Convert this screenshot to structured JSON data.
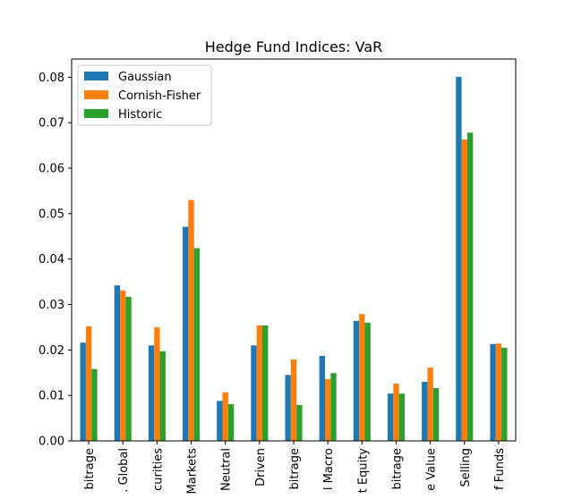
{
  "chart_data": {
    "type": "bar",
    "title": "Hedge Fund Indices: VaR",
    "xlabel": "",
    "ylabel": "",
    "ylim": [
      0,
      0.084
    ],
    "yticks": [
      "0.00",
      "0.01",
      "0.02",
      "0.03",
      "0.04",
      "0.05",
      "0.06",
      "0.07",
      "0.08"
    ],
    "ytick_values": [
      0,
      0.01,
      0.02,
      0.03,
      0.04,
      0.05,
      0.06,
      0.07,
      0.08
    ],
    "categories": [
      "bitrage",
      ". Global",
      "curities",
      "Markets",
      "Neutral",
      "Driven",
      "bitrage",
      "l Macro",
      "t Equity",
      "bitrage",
      "e Value",
      "Selling",
      "f Funds"
    ],
    "series": [
      {
        "name": "Gaussian",
        "color": "#1f77b4",
        "values": [
          0.0216,
          0.0342,
          0.021,
          0.0471,
          0.0088,
          0.021,
          0.0145,
          0.0187,
          0.0264,
          0.0104,
          0.013,
          0.0801,
          0.0213
        ]
      },
      {
        "name": "Cornish-Fisher",
        "color": "#ff7f0e",
        "values": [
          0.0252,
          0.0331,
          0.025,
          0.053,
          0.0107,
          0.0254,
          0.0179,
          0.0136,
          0.0279,
          0.0126,
          0.0161,
          0.0663,
          0.0214
        ]
      },
      {
        "name": "Historic",
        "color": "#2ca02c",
        "values": [
          0.0158,
          0.0317,
          0.0197,
          0.0424,
          0.0081,
          0.0254,
          0.0079,
          0.0149,
          0.026,
          0.0104,
          0.0116,
          0.0678,
          0.0205
        ]
      }
    ],
    "legend": "top-left",
    "grid": false
  }
}
